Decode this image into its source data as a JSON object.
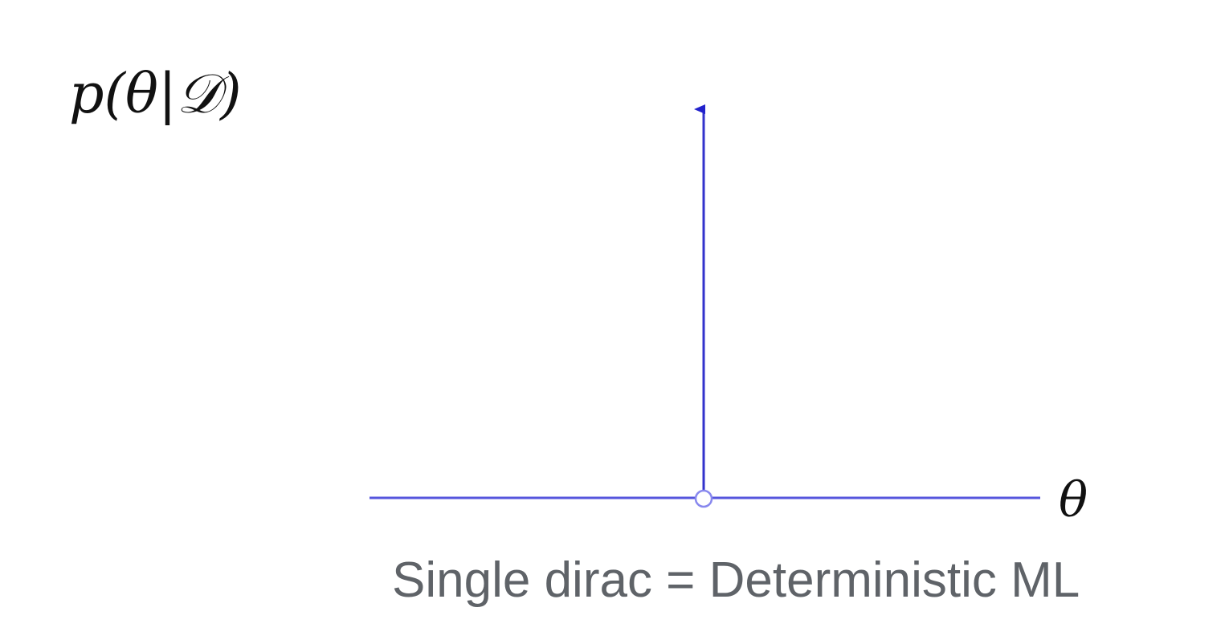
{
  "diagram": {
    "ylabel": "p(θ|𝒟)",
    "xlabel": "θ",
    "caption": "Single dirac = Deterministic ML",
    "colors": {
      "axis": "#5555dd",
      "arrow": "#2222cc",
      "text": "#111111",
      "caption": "#5f6368"
    }
  }
}
